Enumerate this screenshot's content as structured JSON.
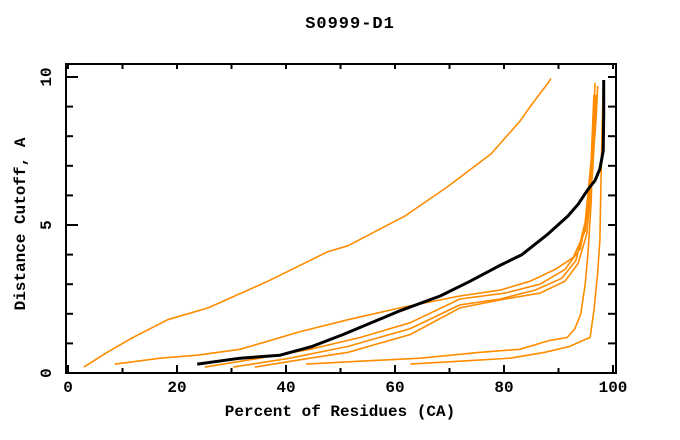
{
  "chart_data": {
    "type": "line",
    "title": "S0999-D1",
    "xlabel": "Percent of Residues (CA)",
    "ylabel": "Distance Cutoff, A",
    "xlim": [
      0,
      100
    ],
    "ylim": [
      0,
      10
    ],
    "x_major_ticks": [
      0,
      20,
      40,
      60,
      80,
      100
    ],
    "x_minor_ticks": [
      10,
      30,
      50,
      70,
      90
    ],
    "y_major_ticks": [
      0,
      5,
      10
    ],
    "y_minor_ticks": [
      1,
      2,
      3,
      4,
      6,
      7,
      8,
      9
    ],
    "grid": "off",
    "legend": "none",
    "colors": {
      "model": "#ff8c00",
      "highlight": "#000000",
      "axis": "#000000"
    },
    "series": [
      {
        "name": "model-curve-1-outlier",
        "color": "#ff8c00",
        "width": 1.6,
        "points": [
          [
            2.9,
            0.2
          ],
          [
            7.2,
            0.7
          ],
          [
            11.9,
            1.2
          ],
          [
            18.3,
            1.8
          ],
          [
            25.7,
            2.2
          ],
          [
            36.7,
            3.1
          ],
          [
            47.7,
            4.1
          ],
          [
            51.4,
            4.3
          ],
          [
            61.8,
            5.3
          ],
          [
            69.7,
            6.3
          ],
          [
            77.6,
            7.4
          ],
          [
            82.9,
            8.5
          ],
          [
            84.8,
            9.0
          ],
          [
            88.1,
            9.8
          ],
          [
            88.6,
            9.95
          ]
        ]
      },
      {
        "name": "model-curve-2",
        "color": "#ff8c00",
        "width": 1.6,
        "points": [
          [
            8.6,
            0.3
          ],
          [
            16.9,
            0.5
          ],
          [
            23.7,
            0.6
          ],
          [
            31.6,
            0.8
          ],
          [
            42.6,
            1.4
          ],
          [
            51.4,
            1.8
          ],
          [
            60.9,
            2.2
          ],
          [
            71.9,
            2.6
          ],
          [
            79.3,
            2.8
          ],
          [
            84.8,
            3.1
          ],
          [
            89.4,
            3.5
          ],
          [
            92.7,
            3.9
          ],
          [
            94.9,
            4.8
          ],
          [
            96.1,
            6.6
          ],
          [
            96.9,
            8.6
          ],
          [
            97.2,
            9.7
          ]
        ]
      },
      {
        "name": "model-curve-3",
        "color": "#ff8c00",
        "width": 1.6,
        "points": [
          [
            25.1,
            0.2
          ],
          [
            35.2,
            0.5
          ],
          [
            44.4,
            0.8
          ],
          [
            53.6,
            1.2
          ],
          [
            62.8,
            1.7
          ],
          [
            71.9,
            2.5
          ],
          [
            80.2,
            2.7
          ],
          [
            86.6,
            3.0
          ],
          [
            91.2,
            3.5
          ],
          [
            94.0,
            4.2
          ],
          [
            95.4,
            5.5
          ],
          [
            96.3,
            7.5
          ],
          [
            96.9,
            9.4
          ]
        ]
      },
      {
        "name": "model-curve-4",
        "color": "#ff8c00",
        "width": 1.6,
        "points": [
          [
            30.3,
            0.2
          ],
          [
            40.7,
            0.5
          ],
          [
            51.4,
            0.9
          ],
          [
            62.8,
            1.5
          ],
          [
            71.9,
            2.3
          ],
          [
            79.3,
            2.5
          ],
          [
            85.7,
            2.8
          ],
          [
            90.6,
            3.2
          ],
          [
            93.2,
            3.8
          ],
          [
            94.9,
            5.1
          ],
          [
            96.0,
            7.2
          ],
          [
            96.5,
            9.4
          ]
        ]
      },
      {
        "name": "model-curve-5",
        "color": "#ff8c00",
        "width": 1.6,
        "points": [
          [
            34.3,
            0.2
          ],
          [
            44.4,
            0.5
          ],
          [
            51.4,
            0.7
          ],
          [
            62.8,
            1.3
          ],
          [
            71.9,
            2.2
          ],
          [
            80.2,
            2.5
          ],
          [
            86.6,
            2.7
          ],
          [
            91.2,
            3.1
          ],
          [
            93.6,
            3.7
          ],
          [
            95.2,
            4.7
          ],
          [
            96.3,
            6.9
          ],
          [
            96.9,
            9.2
          ]
        ]
      },
      {
        "name": "model-curve-6-low",
        "color": "#ff8c00",
        "width": 1.6,
        "points": [
          [
            43.7,
            0.3
          ],
          [
            53.6,
            0.4
          ],
          [
            64.6,
            0.5
          ],
          [
            75.6,
            0.7
          ],
          [
            82.9,
            0.8
          ],
          [
            88.4,
            1.1
          ],
          [
            91.6,
            1.2
          ],
          [
            93.0,
            1.5
          ],
          [
            94.1,
            2.0
          ],
          [
            94.9,
            3.0
          ],
          [
            95.4,
            4.0
          ],
          [
            96.0,
            5.8
          ],
          [
            96.3,
            7.9
          ],
          [
            96.7,
            9.8
          ]
        ]
      },
      {
        "name": "model-curve-7-low",
        "color": "#ff8c00",
        "width": 1.6,
        "points": [
          [
            62.8,
            0.3
          ],
          [
            71.9,
            0.4
          ],
          [
            81.1,
            0.5
          ],
          [
            87.5,
            0.7
          ],
          [
            92.1,
            0.9
          ],
          [
            94.5,
            1.1
          ],
          [
            95.8,
            1.2
          ],
          [
            96.5,
            2.1
          ],
          [
            97.2,
            3.4
          ],
          [
            97.6,
            4.5
          ],
          [
            97.8,
            6.5
          ],
          [
            98.0,
            8.3
          ],
          [
            98.2,
            9.7
          ]
        ]
      },
      {
        "name": "black-highlight-curve",
        "color": "#000000",
        "width": 3,
        "points": [
          [
            23.7,
            0.3
          ],
          [
            31.6,
            0.5
          ],
          [
            38.9,
            0.6
          ],
          [
            44.8,
            0.9
          ],
          [
            50.5,
            1.3
          ],
          [
            60.9,
            2.1
          ],
          [
            68.3,
            2.6
          ],
          [
            73.8,
            3.1
          ],
          [
            78.9,
            3.6
          ],
          [
            83.3,
            4.0
          ],
          [
            88.1,
            4.7
          ],
          [
            91.7,
            5.3
          ],
          [
            93.6,
            5.7
          ],
          [
            95.4,
            6.2
          ],
          [
            96.7,
            6.5
          ],
          [
            97.6,
            6.9
          ],
          [
            98.2,
            7.5
          ],
          [
            98.3,
            8.7
          ],
          [
            98.3,
            9.9
          ]
        ]
      }
    ]
  }
}
